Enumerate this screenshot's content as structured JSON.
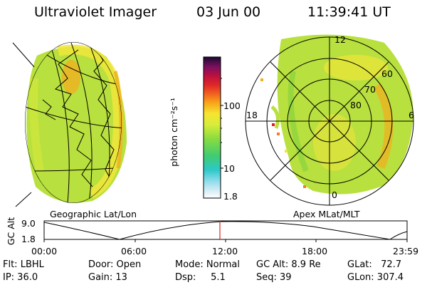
{
  "header": {
    "title": "Ultraviolet Imager",
    "date": "03 Jun 00",
    "time": "11:39:41 UT"
  },
  "colorbar": {
    "unit_label": "photon cm⁻²s⁻¹",
    "ticks": [
      "100",
      "10",
      "1.8"
    ]
  },
  "polar": {
    "lat_labels": [
      "60",
      "70",
      "80"
    ],
    "mlt_labels": [
      "12",
      "18",
      "6",
      "0"
    ]
  },
  "panel_labels": {
    "left": "Geographic Lat/Lon",
    "right": "Apex MLat/MLT"
  },
  "timeline": {
    "ylabel": "GC Alt",
    "yticks": [
      "9.0",
      "1.8"
    ],
    "xticks": [
      "00:00",
      "06:00",
      "12:00",
      "18:00",
      "23:59"
    ]
  },
  "info": {
    "flt": "Flt: LBHL",
    "ip": "IP: 36.0",
    "door": "Door: Open",
    "gain": "Gain: 13",
    "mode": "Mode: Normal",
    "dsp": "Dsp:     5.1",
    "gcalt": "GC Alt: 8.9 Re",
    "seq": "Seq: 39",
    "glat": "GLat:   72.7",
    "glon": "GLon: 307.4"
  },
  "colors": {
    "emission_green": "#b6e23c",
    "emission_yellow": "#f0ea3a",
    "emission_orange": "#f0b020",
    "marker_red": "#e02020"
  }
}
